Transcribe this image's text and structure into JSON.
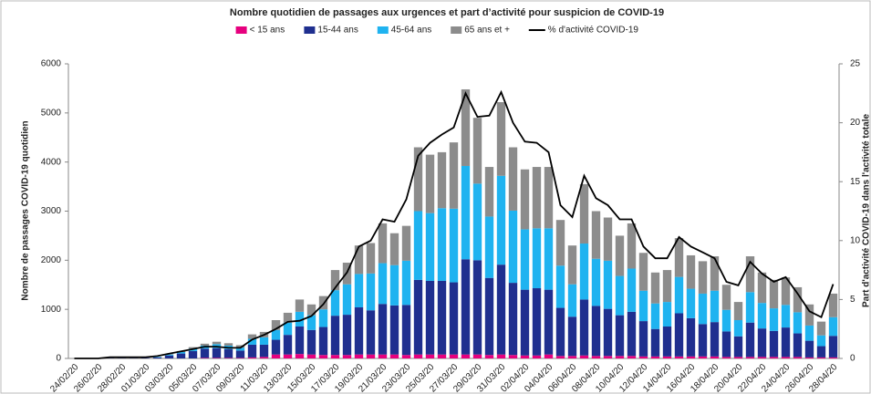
{
  "chart_data": {
    "type": "bar",
    "stacked": true,
    "title": "Nombre quotidien de passages aux urgences et part d’activité pour suspicion de COVID-19",
    "y_label": "Nombre de passages COVID-19 quotidien",
    "y2_label": "Part d'activité COVID-19 dans l'activité totale",
    "categories": [
      "24/02/20",
      null,
      "26/02/20",
      null,
      "28/02/20",
      null,
      "01/03/20",
      null,
      "03/03/20",
      null,
      "05/03/20",
      null,
      "07/03/20",
      null,
      "09/03/20",
      null,
      "11/03/20",
      null,
      "13/03/20",
      null,
      "15/03/20",
      null,
      "17/03/20",
      null,
      "19/03/20",
      null,
      "21/03/20",
      null,
      "23/03/20",
      null,
      "25/03/20",
      null,
      "27/03/20",
      null,
      "29/03/20",
      null,
      "31/03/20",
      null,
      "02/04/20",
      null,
      "04/04/20",
      null,
      "06/04/20",
      null,
      "08/04/20",
      null,
      "10/04/20",
      null,
      "12/04/20",
      null,
      "14/04/20",
      null,
      "16/04/20",
      null,
      "18/04/20",
      null,
      "20/04/20",
      null,
      "22/04/20",
      null,
      "24/04/20",
      null,
      "26/04/20",
      null,
      "28/04/20"
    ],
    "series": [
      {
        "name": "< 15 ans",
        "color": "#e6007e",
        "values": [
          0,
          0,
          0,
          0,
          0,
          0,
          0,
          0,
          0,
          0,
          0,
          10,
          10,
          10,
          10,
          20,
          30,
          80,
          80,
          90,
          80,
          70,
          70,
          70,
          80,
          80,
          80,
          80,
          70,
          80,
          80,
          80,
          80,
          80,
          80,
          70,
          80,
          70,
          60,
          60,
          80,
          50,
          50,
          60,
          50,
          50,
          50,
          50,
          40,
          40,
          40,
          40,
          40,
          40,
          40,
          30,
          30,
          30,
          30,
          30,
          30,
          30,
          20,
          20,
          20
        ]
      },
      {
        "name": "15-44 ans",
        "color": "#1f2f8f",
        "values": [
          0,
          0,
          0,
          5,
          5,
          5,
          10,
          20,
          60,
          100,
          150,
          190,
          200,
          180,
          150,
          260,
          250,
          300,
          400,
          560,
          500,
          570,
          800,
          820,
          960,
          900,
          1030,
          1000,
          1020,
          1520,
          1500,
          1500,
          1470,
          1940,
          1920,
          1570,
          1830,
          1470,
          1340,
          1370,
          1320,
          980,
          800,
          1140,
          1020,
          960,
          830,
          900,
          720,
          560,
          610,
          880,
          780,
          660,
          700,
          520,
          420,
          700,
          580,
          530,
          600,
          480,
          340,
          230,
          440
        ]
      },
      {
        "name": "45-64 ans",
        "color": "#1fb3f0",
        "values": [
          0,
          0,
          0,
          0,
          0,
          0,
          0,
          10,
          20,
          30,
          50,
          60,
          80,
          70,
          60,
          120,
          150,
          200,
          250,
          300,
          300,
          360,
          520,
          620,
          680,
          750,
          830,
          820,
          900,
          1400,
          1380,
          1480,
          1500,
          1900,
          1560,
          1250,
          1810,
          1470,
          1230,
          1220,
          1250,
          860,
          660,
          1140,
          960,
          980,
          800,
          880,
          620,
          520,
          500,
          740,
          600,
          620,
          640,
          440,
          330,
          620,
          520,
          460,
          460,
          430,
          310,
          220,
          380
        ]
      },
      {
        "name": "65 ans et +",
        "color": "#8c8c8c",
        "values": [
          0,
          0,
          0,
          0,
          0,
          0,
          0,
          0,
          10,
          20,
          30,
          40,
          50,
          50,
          50,
          90,
          110,
          200,
          200,
          250,
          220,
          270,
          410,
          440,
          580,
          620,
          810,
          650,
          710,
          1300,
          1190,
          1140,
          1350,
          1560,
          1340,
          1010,
          1500,
          1290,
          1220,
          1250,
          1250,
          930,
          790,
          1210,
          970,
          880,
          820,
          920,
          770,
          630,
          650,
          790,
          680,
          660,
          700,
          510,
          370,
          730,
          620,
          580,
          560,
          510,
          430,
          280,
          480
        ]
      },
      {
        "name": "% d'activité COVID-19",
        "color": "#000000",
        "type": "line",
        "axis": "y2",
        "values": [
          0,
          0,
          0,
          0.1,
          0.1,
          0.1,
          0.1,
          0.2,
          0.4,
          0.6,
          0.8,
          1.0,
          1.0,
          0.9,
          0.9,
          1.6,
          2.0,
          2.5,
          3.1,
          3.2,
          3.6,
          4.6,
          6.0,
          7.3,
          9.5,
          10.0,
          11.8,
          11.6,
          13.5,
          17.2,
          18.3,
          19.0,
          19.6,
          22.5,
          20.5,
          20.6,
          22.6,
          20.0,
          18.4,
          18.3,
          17.5,
          13.0,
          12.0,
          15.5,
          13.6,
          13.0,
          11.8,
          11.8,
          9.5,
          8.5,
          8.5,
          10.3,
          9.5,
          9.0,
          8.5,
          6.5,
          6.2,
          8.2,
          7.2,
          6.5,
          6.9,
          5.5,
          4.0,
          3.5,
          6.3
        ]
      }
    ],
    "ylim": [
      0,
      6000
    ],
    "yticks": [
      0,
      1000,
      2000,
      3000,
      4000,
      5000,
      6000
    ],
    "y2lim": [
      0,
      25
    ],
    "y2ticks": [
      0,
      5,
      10,
      15,
      20,
      25
    ],
    "legend": "top"
  }
}
